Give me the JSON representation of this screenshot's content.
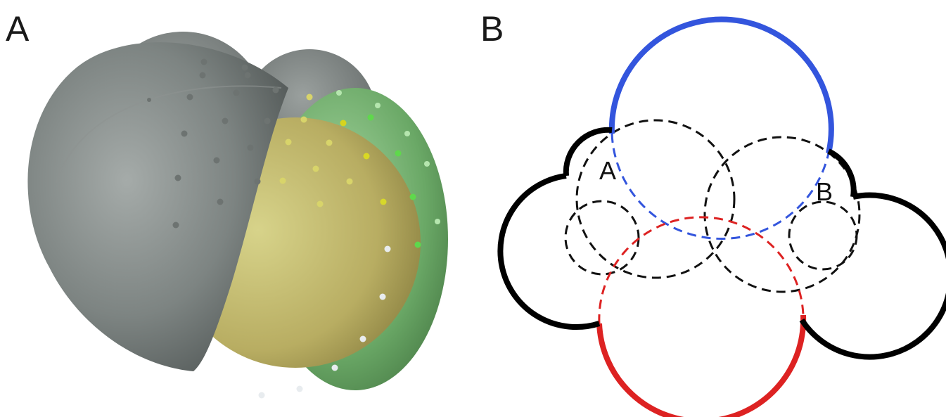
{
  "panels": {
    "a": {
      "letter": "A"
    },
    "b": {
      "letter": "B"
    }
  },
  "panel_b_labels": {
    "atom_a": "A",
    "atom_b": "B"
  },
  "colors": {
    "gray_sphere": "#7f8684",
    "yellow_sphere": "#c9c173",
    "green_sphere": "#5f9a5c",
    "blue_arc": "#3355dd",
    "red_arc": "#dd2222",
    "black_arc": "#000000"
  }
}
